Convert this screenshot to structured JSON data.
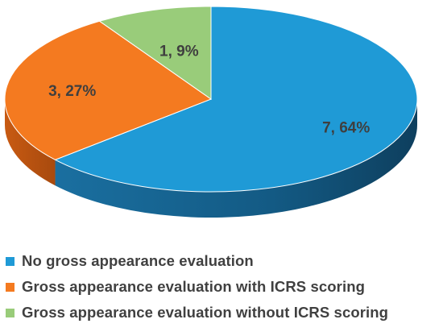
{
  "chart_data": {
    "type": "pie",
    "style": "3d",
    "title": "",
    "slices": [
      {
        "label": "No gross appearance evaluation",
        "value": 7,
        "percent": 64,
        "data_label": "7, 64%",
        "color": "#1f9ad6"
      },
      {
        "label": "Gross appearance evaluation with ICRS scoring",
        "value": 3,
        "percent": 27,
        "data_label": "3, 27%",
        "color": "#f47a20"
      },
      {
        "label": "Gross appearance evaluation without ICRS scoring",
        "value": 1,
        "percent": 9,
        "data_label": "1, 9%",
        "color": "#99cc7a"
      }
    ],
    "legend_position": "bottom"
  }
}
